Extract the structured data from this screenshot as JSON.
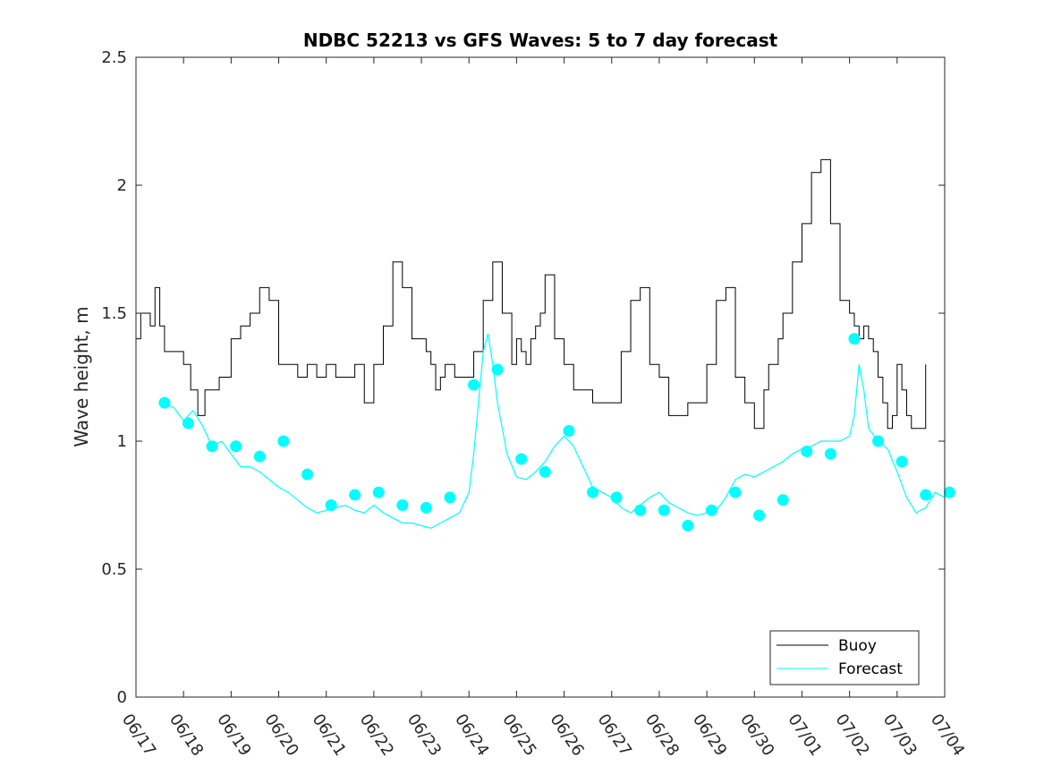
{
  "chart_data": {
    "type": "line",
    "title": "NDBC 52213 vs GFS Waves: 5 to 7 day forecast",
    "xlabel": "",
    "ylabel": "Wave height, m",
    "xlim": [
      "06/17",
      "07/04"
    ],
    "ylim": [
      0,
      2.5
    ],
    "yticks": [
      "0",
      "0.5",
      "1",
      "1.5",
      "2",
      "2.5"
    ],
    "xticks": [
      "06/17",
      "06/18",
      "06/19",
      "06/20",
      "06/21",
      "06/22",
      "06/23",
      "06/24",
      "06/25",
      "06/26",
      "06/27",
      "06/28",
      "06/29",
      "06/30",
      "07/01",
      "07/02",
      "07/03",
      "07/04"
    ],
    "grid": false,
    "legend_position": "bottom-right",
    "colors": {
      "buoy": "#000000",
      "forecast": "#00ffff"
    },
    "series": [
      {
        "name": "Buoy",
        "color": "#000000",
        "x_days": [
          0,
          0.1,
          0.2,
          0.3,
          0.4,
          0.5,
          0.6,
          0.8,
          1.0,
          1.15,
          1.3,
          1.45,
          1.6,
          1.75,
          2.0,
          2.2,
          2.4,
          2.6,
          2.8,
          3.0,
          3.2,
          3.4,
          3.6,
          3.8,
          4.0,
          4.2,
          4.4,
          4.6,
          4.8,
          5.0,
          5.2,
          5.4,
          5.6,
          5.8,
          6.0,
          6.1,
          6.2,
          6.3,
          6.4,
          6.5,
          6.7,
          6.9,
          7.1,
          7.3,
          7.5,
          7.7,
          7.9,
          8.0,
          8.1,
          8.2,
          8.3,
          8.4,
          8.5,
          8.6,
          8.8,
          9.0,
          9.2,
          9.4,
          9.6,
          9.8,
          10.0,
          10.2,
          10.4,
          10.6,
          10.8,
          11.0,
          11.2,
          11.4,
          11.6,
          11.8,
          12.0,
          12.2,
          12.4,
          12.6,
          12.8,
          13.0,
          13.1,
          13.2,
          13.3,
          13.4,
          13.5,
          13.6,
          13.8,
          14.0,
          14.2,
          14.4,
          14.6,
          14.8,
          15.0,
          15.1,
          15.2,
          15.3,
          15.4,
          15.5,
          15.6,
          15.7,
          15.8,
          15.9,
          16.0,
          16.1,
          16.2,
          16.3,
          16.4,
          16.5,
          16.6
        ],
        "values": [
          1.4,
          1.5,
          1.5,
          1.45,
          1.6,
          1.45,
          1.35,
          1.35,
          1.3,
          1.2,
          1.1,
          1.2,
          1.2,
          1.25,
          1.4,
          1.45,
          1.5,
          1.6,
          1.55,
          1.3,
          1.3,
          1.25,
          1.3,
          1.25,
          1.3,
          1.25,
          1.25,
          1.3,
          1.15,
          1.3,
          1.45,
          1.7,
          1.6,
          1.4,
          1.4,
          1.35,
          1.3,
          1.2,
          1.25,
          1.3,
          1.25,
          1.25,
          1.35,
          1.55,
          1.7,
          1.5,
          1.3,
          1.4,
          1.35,
          1.3,
          1.4,
          1.45,
          1.5,
          1.65,
          1.4,
          1.3,
          1.2,
          1.2,
          1.15,
          1.15,
          1.15,
          1.35,
          1.55,
          1.6,
          1.3,
          1.25,
          1.1,
          1.1,
          1.15,
          1.15,
          1.3,
          1.55,
          1.6,
          1.25,
          1.15,
          1.05,
          1.05,
          1.2,
          1.3,
          1.3,
          1.4,
          1.5,
          1.7,
          1.85,
          2.05,
          2.1,
          1.85,
          1.55,
          1.5,
          1.45,
          1.4,
          1.45,
          1.4,
          1.35,
          1.25,
          1.15,
          1.05,
          1.1,
          1.3,
          1.2,
          1.1,
          1.05,
          1.05,
          1.05,
          1.3
        ]
      },
      {
        "name": "Forecast",
        "color": "#00ffff",
        "marker_x_days": [
          0.6,
          1.1,
          1.6,
          2.1,
          2.6,
          3.1,
          3.6,
          4.1,
          4.6,
          5.1,
          5.6,
          6.1,
          6.6,
          7.1,
          7.6,
          8.1,
          8.6,
          9.1,
          9.6,
          10.1,
          10.6,
          11.1,
          11.6,
          12.1,
          12.6,
          13.1,
          13.6,
          14.1,
          14.6,
          15.1,
          15.6,
          16.1,
          16.6,
          17.1
        ],
        "marker_values": [
          1.15,
          1.07,
          0.98,
          0.98,
          0.94,
          1.0,
          0.87,
          0.75,
          0.79,
          0.8,
          0.75,
          0.74,
          0.78,
          1.22,
          1.28,
          0.93,
          0.88,
          1.04,
          0.8,
          0.78,
          0.73,
          0.73,
          0.67,
          0.73,
          0.8,
          0.71,
          0.77,
          0.96,
          0.95,
          1.4,
          1.0,
          0.92,
          0.79,
          0.8
        ],
        "line_x_days": [
          0.6,
          0.8,
          1.0,
          1.2,
          1.4,
          1.6,
          1.8,
          2.0,
          2.2,
          2.4,
          2.6,
          2.8,
          3.0,
          3.2,
          3.4,
          3.6,
          3.8,
          4.0,
          4.2,
          4.4,
          4.6,
          4.8,
          5.0,
          5.2,
          5.4,
          5.6,
          5.8,
          6.0,
          6.2,
          6.4,
          6.6,
          6.8,
          7.0,
          7.1,
          7.2,
          7.3,
          7.4,
          7.5,
          7.6,
          7.7,
          7.8,
          8.0,
          8.2,
          8.4,
          8.6,
          8.8,
          9.0,
          9.2,
          9.4,
          9.6,
          9.8,
          10.0,
          10.2,
          10.4,
          10.6,
          10.8,
          11.0,
          11.2,
          11.4,
          11.6,
          11.8,
          12.0,
          12.2,
          12.4,
          12.6,
          12.8,
          13.0,
          13.2,
          13.4,
          13.6,
          13.8,
          14.0,
          14.2,
          14.4,
          14.6,
          14.8,
          15.0,
          15.1,
          15.2,
          15.3,
          15.4,
          15.6,
          15.8,
          16.0,
          16.2,
          16.4,
          16.6,
          16.8,
          17.0
        ],
        "line_values": [
          1.15,
          1.13,
          1.08,
          1.12,
          1.06,
          0.98,
          1.0,
          0.95,
          0.9,
          0.9,
          0.88,
          0.85,
          0.82,
          0.8,
          0.77,
          0.74,
          0.72,
          0.73,
          0.74,
          0.75,
          0.73,
          0.72,
          0.75,
          0.72,
          0.7,
          0.68,
          0.68,
          0.67,
          0.66,
          0.68,
          0.7,
          0.72,
          0.8,
          0.95,
          1.15,
          1.35,
          1.42,
          1.3,
          1.15,
          1.05,
          0.95,
          0.86,
          0.85,
          0.88,
          0.92,
          0.98,
          1.02,
          0.98,
          0.9,
          0.82,
          0.8,
          0.78,
          0.74,
          0.72,
          0.75,
          0.78,
          0.8,
          0.76,
          0.74,
          0.72,
          0.71,
          0.72,
          0.73,
          0.78,
          0.85,
          0.87,
          0.86,
          0.88,
          0.9,
          0.92,
          0.95,
          0.97,
          0.98,
          1.0,
          1.0,
          1.0,
          1.02,
          1.1,
          1.3,
          1.2,
          1.05,
          1.0,
          0.97,
          0.88,
          0.78,
          0.72,
          0.74,
          0.8,
          0.78
        ]
      }
    ]
  }
}
